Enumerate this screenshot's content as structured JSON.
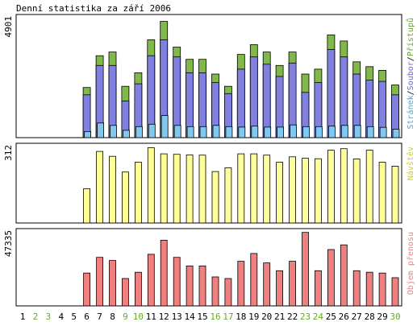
{
  "chart_data": {
    "type": "bar",
    "title": "Denní statistika za září 2006",
    "categories": [
      "1",
      "2",
      "3",
      "4",
      "5",
      "6",
      "7",
      "8",
      "9",
      "10",
      "11",
      "12",
      "13",
      "14",
      "15",
      "16",
      "17",
      "18",
      "19",
      "20",
      "21",
      "22",
      "23",
      "24",
      "25",
      "26",
      "27",
      "28",
      "29",
      "30"
    ],
    "weekend_days": [
      2,
      3,
      9,
      10,
      16,
      17,
      23,
      24,
      30
    ],
    "colors": {
      "hits": "#80b84a",
      "files": "#8080e0",
      "pages": "#80c8f0",
      "visits": "#ffff99",
      "kbytes": "#f08080",
      "weekday_label": "#000000",
      "weekend_label": "#66aa22"
    },
    "panels": [
      {
        "id": "hits",
        "max_label": "4901",
        "ymax": 4901,
        "legend": [
          {
            "text": "Stránek",
            "color": "#4fa0d8"
          },
          {
            "text": "/",
            "color": "#000000"
          },
          {
            "text": "Soubor",
            "color": "#6868d8"
          },
          {
            "text": "/",
            "color": "#000000"
          },
          {
            "text": "Přístupů",
            "color": "#66aa22"
          }
        ],
        "series": [
          {
            "name": "Přístupů",
            "values": [
              0,
              0,
              0,
              0,
              0,
              2050,
              3350,
              3500,
              2100,
              2650,
              4000,
              4750,
              3700,
              3200,
              3200,
              2600,
              2100,
              3400,
              3800,
              3500,
              2950,
              3500,
              2600,
              2800,
              4200,
              3950,
              3100,
              2900,
              2750,
              2150
            ]
          },
          {
            "name": "Soubor",
            "values": [
              0,
              0,
              0,
              0,
              0,
              1750,
              2950,
              2950,
              1500,
              2200,
              3350,
              4000,
              3300,
              2650,
              2650,
              2250,
              1800,
              2800,
              3300,
              3000,
              2500,
              3050,
              1850,
              2250,
              3600,
              3300,
              2600,
              2350,
              2300,
              1750
            ]
          },
          {
            "name": "Stránek",
            "values": [
              0,
              0,
              0,
              0,
              0,
              250,
              600,
              500,
              300,
              450,
              550,
              900,
              500,
              450,
              450,
              500,
              450,
              430,
              470,
              430,
              430,
              520,
              450,
              450,
              470,
              500,
              500,
              450,
              420,
              350
            ]
          }
        ]
      },
      {
        "id": "visits",
        "max_label": "312",
        "ymax": 312,
        "legend": [
          {
            "text": "Návštěv",
            "color": "#cccc33"
          }
        ],
        "series": [
          {
            "name": "Návštěv",
            "values": [
              0,
              0,
              0,
              0,
              0,
              140,
              292,
              272,
              208,
              248,
              307,
              282,
              280,
              278,
              277,
              210,
              225,
              282,
              282,
              277,
              248,
              270,
              264,
              262,
              297,
              303,
              261,
              297,
              248,
              232
            ]
          }
        ]
      },
      {
        "id": "kbytes",
        "max_label": "47335",
        "ymax": 47335,
        "legend": [
          {
            "text": "Objem přenosu",
            "color": "#f08080"
          }
        ],
        "series": [
          {
            "name": "Objem přenosu",
            "values": [
              0,
              0,
              0,
              0,
              0,
              21000,
              31000,
              29000,
              17500,
              21500,
              33000,
              42000,
              31000,
              25500,
              25500,
              18500,
              17500,
              28500,
              33500,
              27500,
              22500,
              28500,
              47000,
              22500,
              36000,
              39000,
              22500,
              21500,
              21000,
              18000
            ]
          }
        ]
      }
    ]
  }
}
